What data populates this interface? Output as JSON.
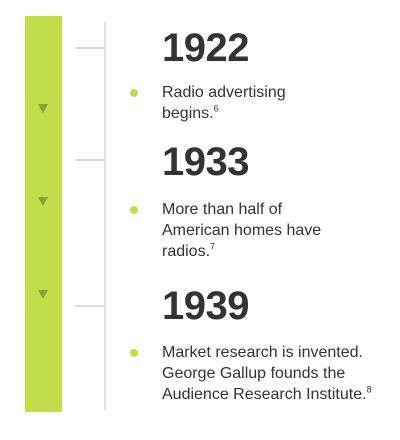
{
  "events": [
    {
      "year": "1922",
      "lines": [
        "Radio advertising",
        "begins."
      ],
      "note": "6"
    },
    {
      "year": "1933",
      "lines": [
        "More than half of",
        "American homes have",
        "radios."
      ],
      "note": "7"
    },
    {
      "year": "1939",
      "lines": [
        "Market research is invented.",
        "George Gallup founds the",
        "Audience Research Institute."
      ],
      "note": "8"
    }
  ]
}
